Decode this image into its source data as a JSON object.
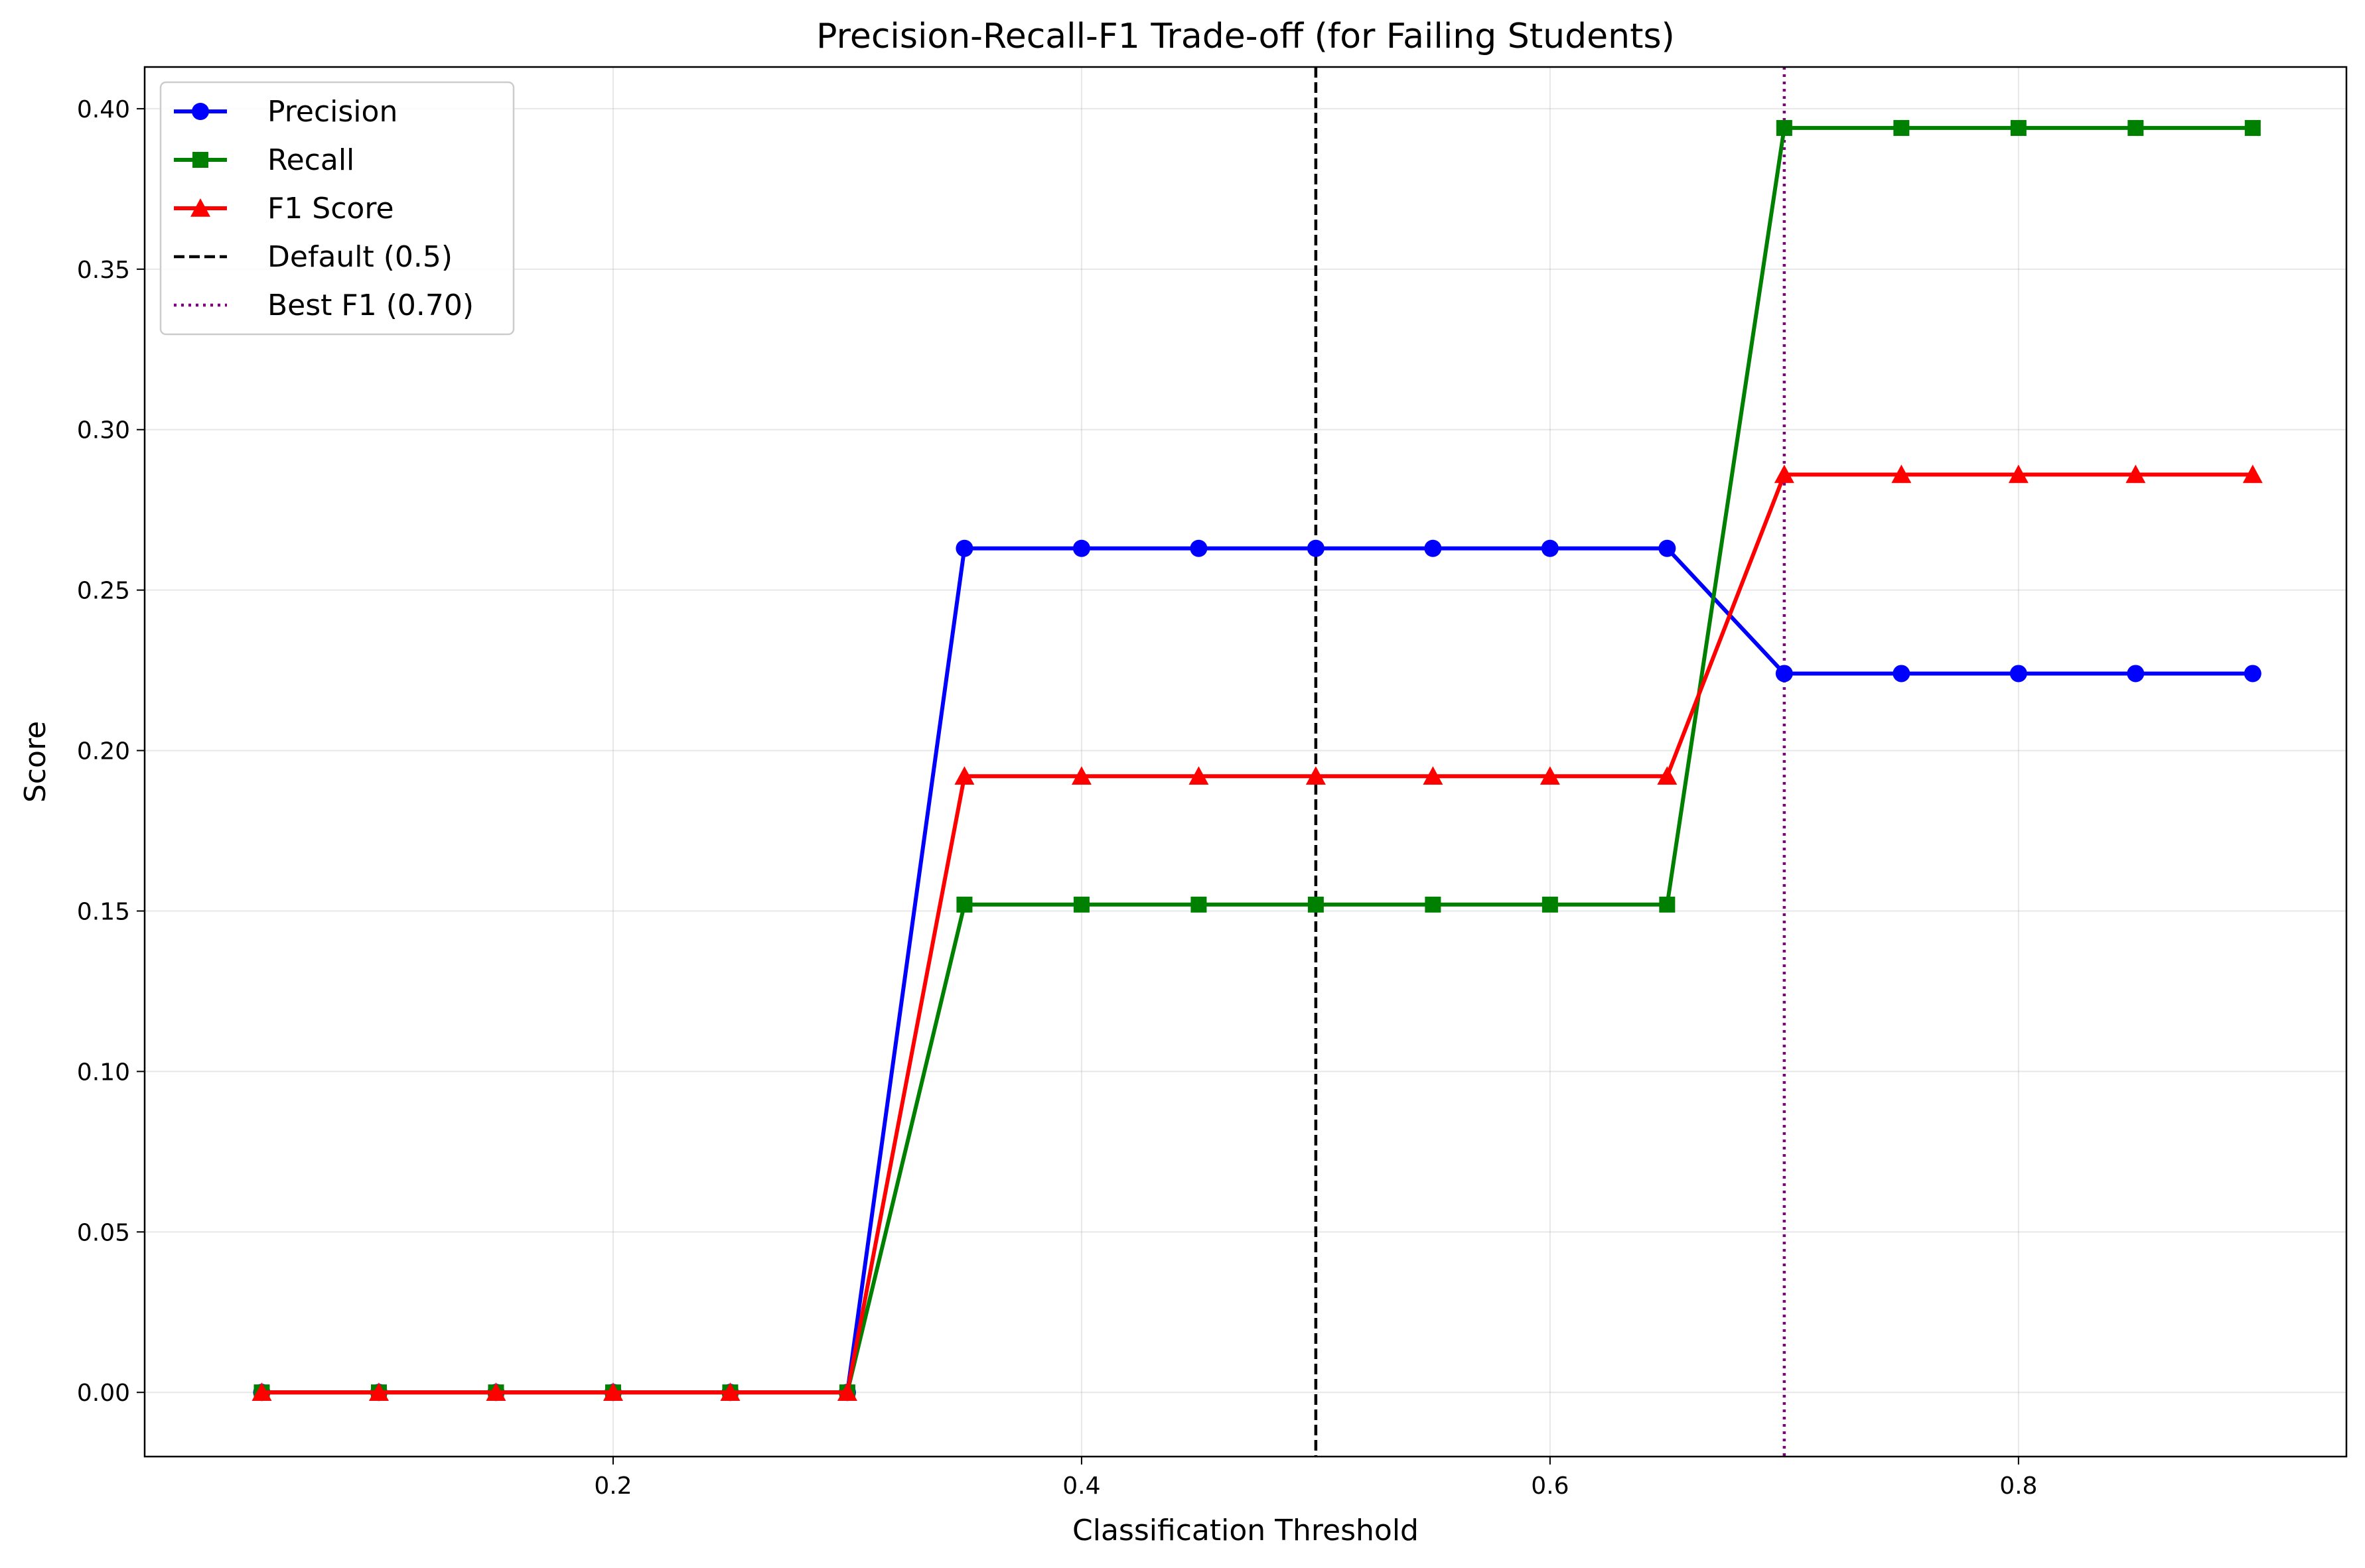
{
  "chart_data": {
    "type": "line",
    "title": "Precision-Recall-F1 Trade-off (for Failing Students)",
    "xlabel": "Classification Threshold",
    "ylabel": "Score",
    "xlim": [
      0.0,
      0.94
    ],
    "ylim": [
      -0.02,
      0.413
    ],
    "x_ticks": [
      "0.2",
      "0.4",
      "0.6",
      "0.8"
    ],
    "y_ticks": [
      "0.00",
      "0.05",
      "0.10",
      "0.15",
      "0.20",
      "0.25",
      "0.30",
      "0.35",
      "0.40"
    ],
    "grid": true,
    "legend_position": "upper-left",
    "x": [
      0.05,
      0.1,
      0.15,
      0.2,
      0.25,
      0.3,
      0.35,
      0.4,
      0.45,
      0.5,
      0.55,
      0.6,
      0.65,
      0.7,
      0.75,
      0.8,
      0.85,
      0.9
    ],
    "series": [
      {
        "name": "Precision",
        "color": "#0000ff",
        "marker": "circle",
        "values": [
          0.0,
          0.0,
          0.0,
          0.0,
          0.0,
          0.0,
          0.263,
          0.263,
          0.263,
          0.263,
          0.263,
          0.263,
          0.263,
          0.224,
          0.224,
          0.224,
          0.224,
          0.224
        ]
      },
      {
        "name": "Recall",
        "color": "#008000",
        "marker": "square",
        "values": [
          0.0,
          0.0,
          0.0,
          0.0,
          0.0,
          0.0,
          0.152,
          0.152,
          0.152,
          0.152,
          0.152,
          0.152,
          0.152,
          0.394,
          0.394,
          0.394,
          0.394,
          0.394
        ]
      },
      {
        "name": "F1 Score",
        "color": "#ff0000",
        "marker": "triangle",
        "values": [
          0.0,
          0.0,
          0.0,
          0.0,
          0.0,
          0.0,
          0.192,
          0.192,
          0.192,
          0.192,
          0.192,
          0.192,
          0.192,
          0.286,
          0.286,
          0.286,
          0.286,
          0.286
        ]
      }
    ],
    "vlines": [
      {
        "name": "Default (0.5)",
        "x": 0.5,
        "color": "#000000",
        "style": "dashed"
      },
      {
        "name": "Best F1 (0.70)",
        "x": 0.7,
        "color": "#800080",
        "style": "dotted"
      }
    ]
  }
}
